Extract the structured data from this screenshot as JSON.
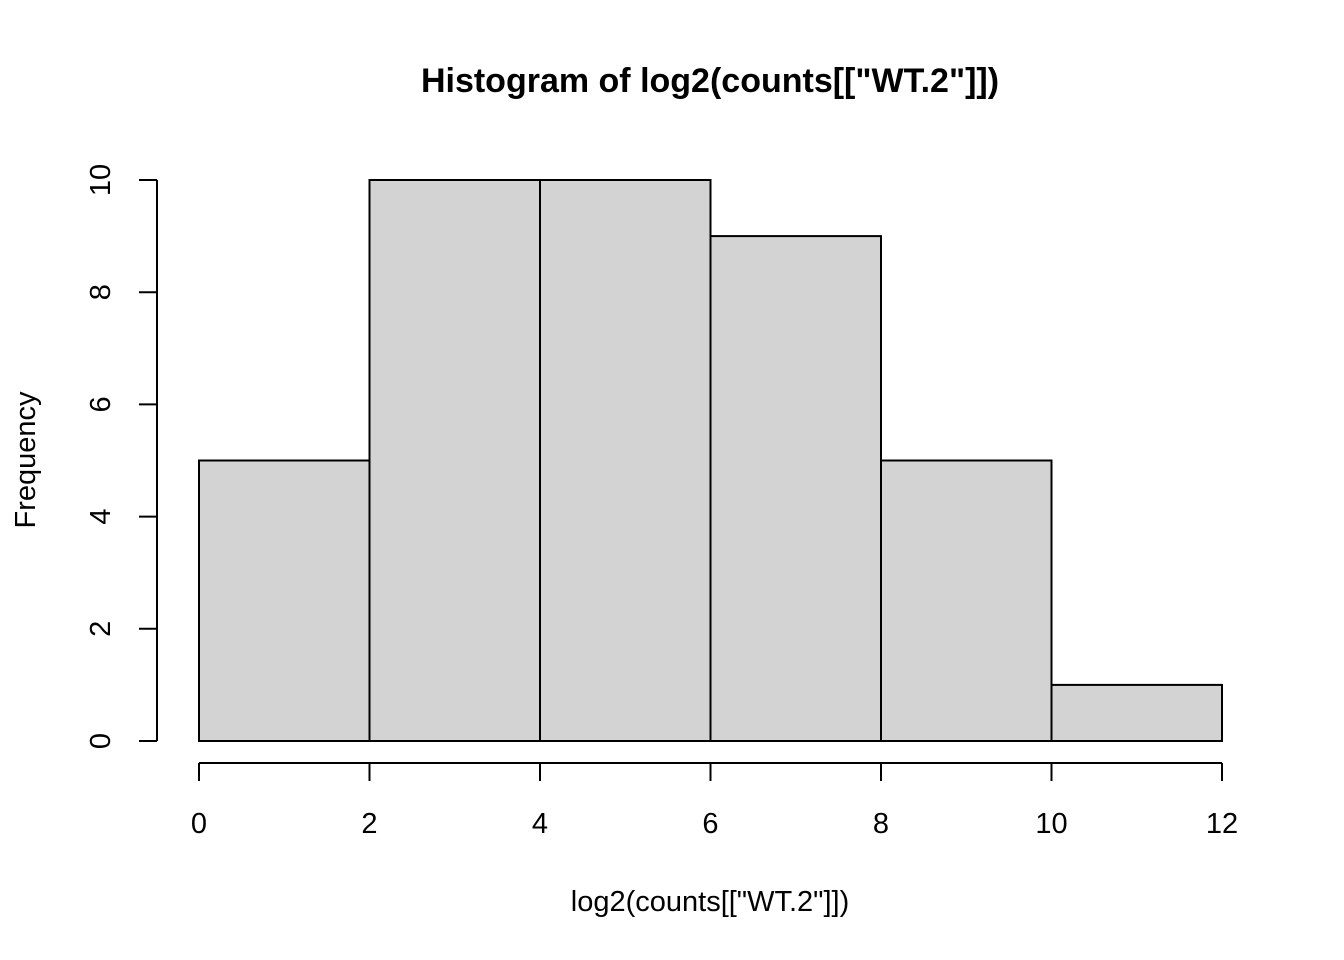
{
  "chart_data": {
    "type": "bar",
    "subtype": "histogram",
    "title": "Histogram of log2(counts[[\"WT.2\"]])",
    "xlabel": "log2(counts[[\"WT.2\"]])",
    "ylabel": "Frequency",
    "bins": [
      {
        "from": 0,
        "to": 2,
        "count": 5
      },
      {
        "from": 2,
        "to": 4,
        "count": 10
      },
      {
        "from": 4,
        "to": 6,
        "count": 10
      },
      {
        "from": 6,
        "to": 8,
        "count": 9
      },
      {
        "from": 8,
        "to": 10,
        "count": 5
      },
      {
        "from": 10,
        "to": 12,
        "count": 1
      }
    ],
    "xlim": [
      0,
      12
    ],
    "ylim": [
      0,
      10
    ],
    "x_ticks": [
      0,
      2,
      4,
      6,
      8,
      10,
      12
    ],
    "x_tick_labels": [
      "0",
      "2",
      "4",
      "6",
      "8",
      "10",
      "12"
    ],
    "y_ticks": [
      0,
      2,
      4,
      6,
      8,
      10
    ],
    "y_tick_labels": [
      "0",
      "2",
      "4",
      "6",
      "8",
      "10"
    ],
    "grid": false,
    "legend": "none",
    "bar_fill": "#d3d3d3",
    "bar_edge": "#000000"
  }
}
